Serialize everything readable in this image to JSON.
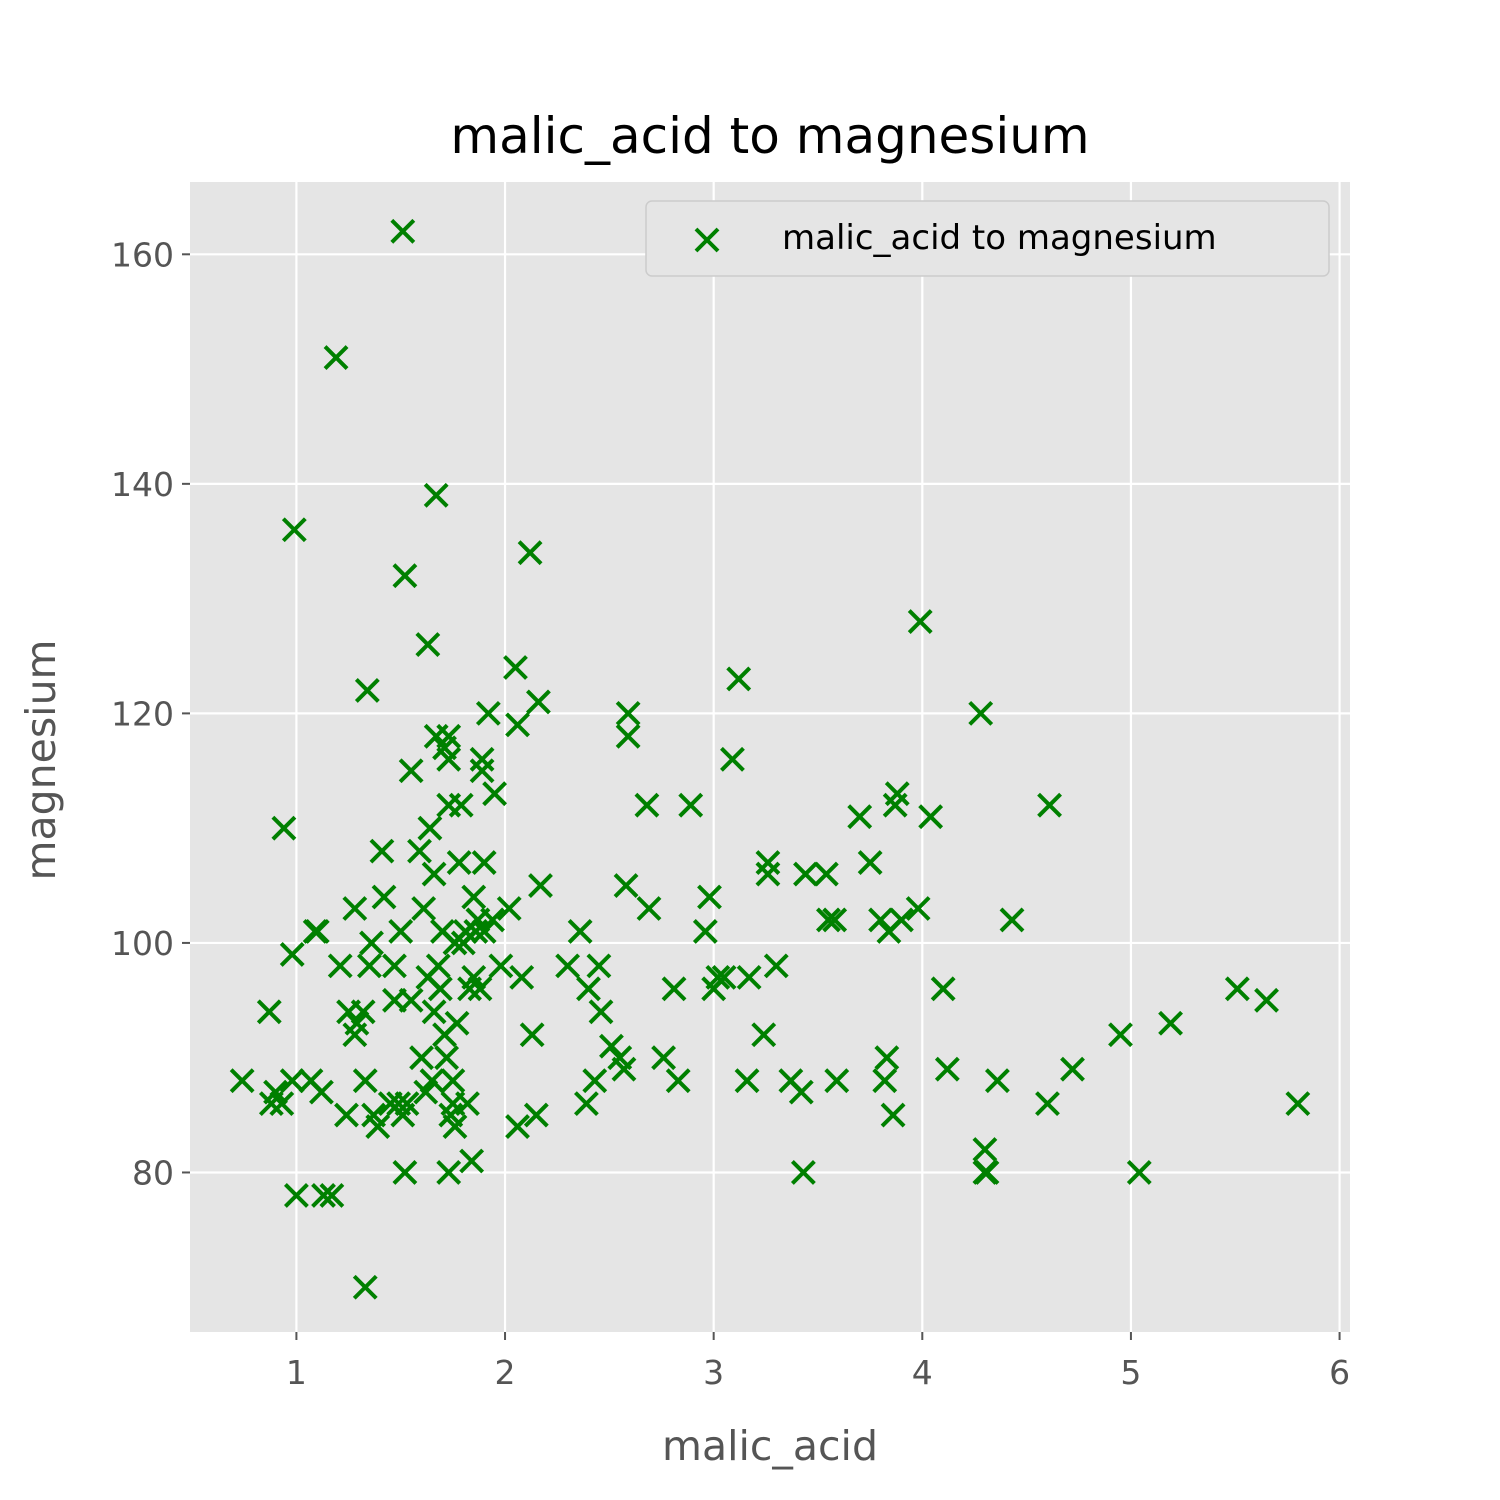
{
  "chart_data": {
    "type": "scatter",
    "title": "malic_acid to magnesium",
    "xlabel": "malic_acid",
    "ylabel": "magnesium",
    "xlim": [
      0.49,
      6.05
    ],
    "ylim": [
      66.1,
      166.3
    ],
    "xticks": [
      1,
      2,
      3,
      4,
      5,
      6
    ],
    "yticks": [
      80,
      100,
      120,
      140,
      160
    ],
    "grid": true,
    "legend_position": "top-right",
    "marker": "x",
    "series": [
      {
        "name": "malic_acid to magnesium",
        "color": "#008000",
        "points": [
          [
            0.74,
            88
          ],
          [
            0.87,
            94
          ],
          [
            0.88,
            86
          ],
          [
            0.9,
            87
          ],
          [
            0.93,
            86
          ],
          [
            0.94,
            110
          ],
          [
            0.98,
            88
          ],
          [
            0.98,
            99
          ],
          [
            0.99,
            136
          ],
          [
            1.0,
            78
          ],
          [
            1.07,
            88
          ],
          [
            1.09,
            101
          ],
          [
            1.1,
            101
          ],
          [
            1.12,
            87
          ],
          [
            1.13,
            78
          ],
          [
            1.17,
            78
          ],
          [
            1.19,
            151
          ],
          [
            1.21,
            98
          ],
          [
            1.24,
            85
          ],
          [
            1.25,
            94
          ],
          [
            1.28,
            92
          ],
          [
            1.28,
            103
          ],
          [
            1.29,
            93
          ],
          [
            1.32,
            94
          ],
          [
            1.33,
            70
          ],
          [
            1.33,
            88
          ],
          [
            1.34,
            122
          ],
          [
            1.35,
            98
          ],
          [
            1.36,
            100
          ],
          [
            1.37,
            85
          ],
          [
            1.39,
            84
          ],
          [
            1.41,
            108
          ],
          [
            1.42,
            104
          ],
          [
            1.45,
            86
          ],
          [
            1.47,
            95
          ],
          [
            1.47,
            98
          ],
          [
            1.49,
            86
          ],
          [
            1.5,
            101
          ],
          [
            1.51,
            85
          ],
          [
            1.51,
            162
          ],
          [
            1.52,
            80
          ],
          [
            1.52,
            132
          ],
          [
            1.53,
            86
          ],
          [
            1.55,
            95
          ],
          [
            1.55,
            115
          ],
          [
            1.59,
            108
          ],
          [
            1.6,
            90
          ],
          [
            1.61,
            103
          ],
          [
            1.62,
            87
          ],
          [
            1.63,
            97
          ],
          [
            1.63,
            126
          ],
          [
            1.64,
            110
          ],
          [
            1.65,
            88
          ],
          [
            1.66,
            94
          ],
          [
            1.66,
            106
          ],
          [
            1.67,
            139
          ],
          [
            1.67,
            118
          ],
          [
            1.68,
            98
          ],
          [
            1.69,
            96
          ],
          [
            1.7,
            101
          ],
          [
            1.71,
            92
          ],
          [
            1.71,
            117
          ],
          [
            1.72,
            90
          ],
          [
            1.73,
            80
          ],
          [
            1.73,
            112
          ],
          [
            1.73,
            118
          ],
          [
            1.73,
            116
          ],
          [
            1.74,
            85
          ],
          [
            1.75,
            86
          ],
          [
            1.75,
            88
          ],
          [
            1.76,
            84
          ],
          [
            1.76,
            100
          ],
          [
            1.77,
            93
          ],
          [
            1.78,
            107
          ],
          [
            1.79,
            112
          ],
          [
            1.8,
            100
          ],
          [
            1.81,
            101
          ],
          [
            1.82,
            86
          ],
          [
            1.83,
            96
          ],
          [
            1.84,
            81
          ],
          [
            1.85,
            104
          ],
          [
            1.85,
            97
          ],
          [
            1.86,
            101
          ],
          [
            1.87,
            102
          ],
          [
            1.88,
            96
          ],
          [
            1.89,
            116
          ],
          [
            1.89,
            115
          ],
          [
            1.9,
            101
          ],
          [
            1.9,
            107
          ],
          [
            1.92,
            120
          ],
          [
            1.94,
            102
          ],
          [
            1.95,
            113
          ],
          [
            1.98,
            98
          ],
          [
            2.02,
            103
          ],
          [
            2.05,
            124
          ],
          [
            2.06,
            84
          ],
          [
            2.06,
            119
          ],
          [
            2.08,
            97
          ],
          [
            2.12,
            134
          ],
          [
            2.13,
            92
          ],
          [
            2.15,
            85
          ],
          [
            2.16,
            121
          ],
          [
            2.17,
            105
          ],
          [
            2.3,
            98
          ],
          [
            2.36,
            101
          ],
          [
            2.39,
            86
          ],
          [
            2.4,
            96
          ],
          [
            2.43,
            88
          ],
          [
            2.45,
            98
          ],
          [
            2.46,
            94
          ],
          [
            2.51,
            91
          ],
          [
            2.55,
            90
          ],
          [
            2.57,
            89
          ],
          [
            2.58,
            105
          ],
          [
            2.59,
            118
          ],
          [
            2.59,
            120
          ],
          [
            2.68,
            112
          ],
          [
            2.69,
            103
          ],
          [
            2.76,
            90
          ],
          [
            2.81,
            96
          ],
          [
            2.83,
            88
          ],
          [
            2.89,
            112
          ],
          [
            2.96,
            101
          ],
          [
            2.98,
            104
          ],
          [
            3.0,
            96
          ],
          [
            3.02,
            97
          ],
          [
            3.05,
            97
          ],
          [
            3.09,
            116
          ],
          [
            3.12,
            123
          ],
          [
            3.16,
            88
          ],
          [
            3.17,
            97
          ],
          [
            3.24,
            92
          ],
          [
            3.26,
            106
          ],
          [
            3.26,
            107
          ],
          [
            3.3,
            98
          ],
          [
            3.37,
            88
          ],
          [
            3.42,
            87
          ],
          [
            3.43,
            80
          ],
          [
            3.44,
            106
          ],
          [
            3.54,
            106
          ],
          [
            3.55,
            102
          ],
          [
            3.58,
            102
          ],
          [
            3.59,
            88
          ],
          [
            3.7,
            111
          ],
          [
            3.75,
            107
          ],
          [
            3.8,
            102
          ],
          [
            3.82,
            88
          ],
          [
            3.83,
            90
          ],
          [
            3.84,
            101
          ],
          [
            3.86,
            85
          ],
          [
            3.87,
            112
          ],
          [
            3.88,
            113
          ],
          [
            3.9,
            102
          ],
          [
            3.98,
            103
          ],
          [
            3.99,
            128
          ],
          [
            4.04,
            111
          ],
          [
            4.1,
            96
          ],
          [
            4.12,
            89
          ],
          [
            4.28,
            120
          ],
          [
            4.3,
            82
          ],
          [
            4.3,
            80
          ],
          [
            4.31,
            80
          ],
          [
            4.36,
            88
          ],
          [
            4.43,
            102
          ],
          [
            4.6,
            86
          ],
          [
            4.61,
            112
          ],
          [
            4.72,
            89
          ],
          [
            4.95,
            92
          ],
          [
            5.04,
            80
          ],
          [
            5.19,
            93
          ],
          [
            5.51,
            96
          ],
          [
            5.65,
            95
          ],
          [
            5.8,
            86
          ]
        ]
      }
    ]
  }
}
